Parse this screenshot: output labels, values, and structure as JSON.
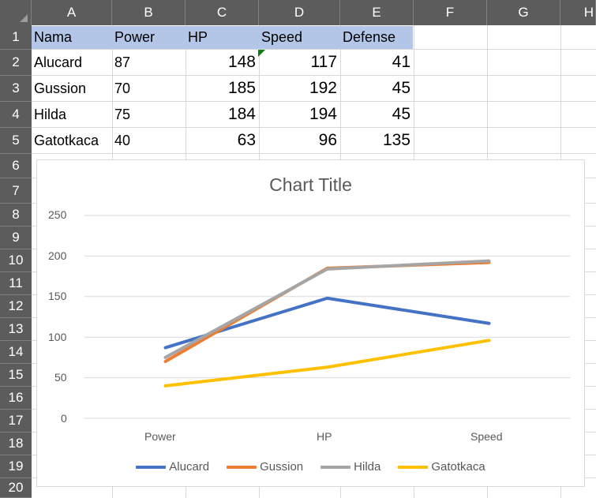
{
  "columns": [
    "A",
    "B",
    "C",
    "D",
    "E",
    "F",
    "G",
    "H"
  ],
  "rows": [
    "1",
    "2",
    "3",
    "4",
    "5",
    "6",
    "7",
    "8",
    "9",
    "10",
    "11",
    "12",
    "13",
    "14",
    "15",
    "16",
    "17",
    "18",
    "19",
    "20"
  ],
  "table": {
    "header": [
      "Nama",
      "Power",
      "HP",
      "Speed",
      "Defense"
    ],
    "rows": [
      [
        "Alucard",
        "87",
        "148",
        "117",
        "41"
      ],
      [
        "Gussion",
        "70",
        "185",
        "192",
        "45"
      ],
      [
        "Hilda",
        "75",
        "184",
        "194",
        "45"
      ],
      [
        "Gatotkaca",
        "40",
        "63",
        "96",
        "135"
      ]
    ]
  },
  "chart_data": {
    "type": "line",
    "title": "Chart Title",
    "categories": [
      "Power",
      "HP",
      "Speed"
    ],
    "series": [
      {
        "name": "Alucard",
        "values": [
          87,
          148,
          117
        ],
        "color": "#4472c4"
      },
      {
        "name": "Gussion",
        "values": [
          70,
          185,
          192
        ],
        "color": "#ed7d31"
      },
      {
        "name": "Hilda",
        "values": [
          75,
          184,
          194
        ],
        "color": "#a5a5a5"
      },
      {
        "name": "Gatotkaca",
        "values": [
          40,
          63,
          96
        ],
        "color": "#ffc000"
      }
    ],
    "yticks": [
      "0",
      "50",
      "100",
      "150",
      "200",
      "250"
    ],
    "ylim": [
      0,
      250
    ],
    "grid": true,
    "legend": "bottom"
  }
}
